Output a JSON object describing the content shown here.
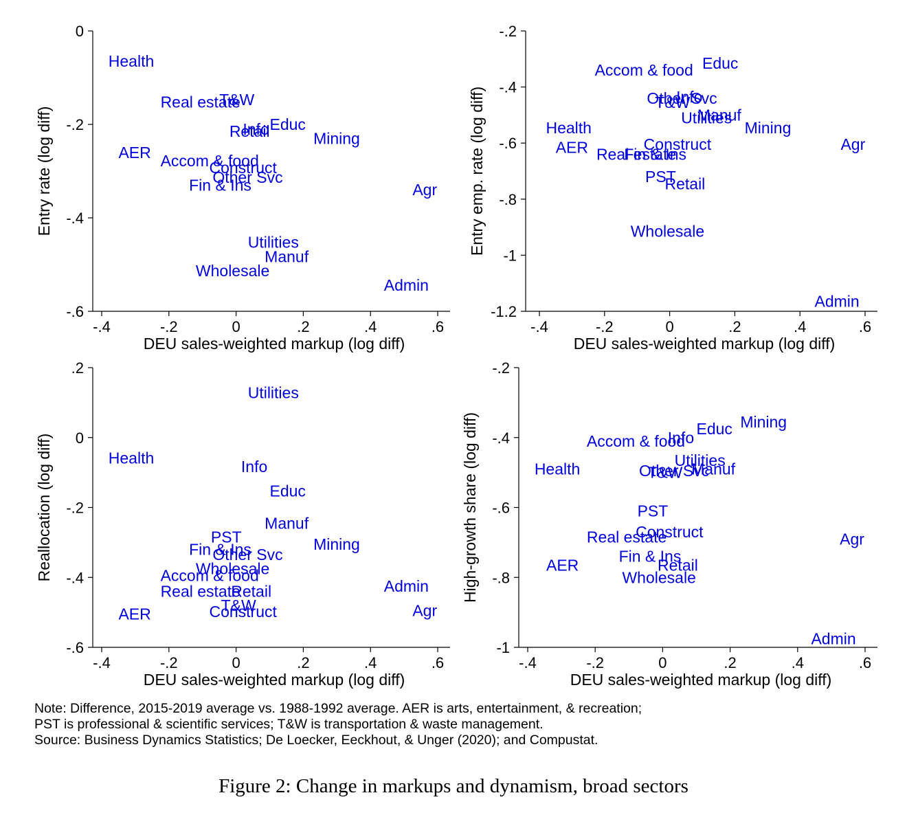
{
  "chart_data": [
    {
      "type": "scatter",
      "xlabel": "DEU sales-weighted markup (log diff)",
      "ylabel": "Entry rate (log diff)",
      "xlim": [
        -0.4,
        0.6
      ],
      "ylim": [
        -0.6,
        0
      ],
      "xticks": [
        -0.4,
        -0.2,
        0,
        0.2,
        0.4,
        0.6
      ],
      "xtick_labels": [
        "-.4",
        "-.2",
        "0",
        ".2",
        ".4",
        ".6"
      ],
      "yticks": [
        0,
        -0.2,
        -0.4,
        -0.6
      ],
      "ytick_labels": [
        "0",
        "-.2",
        "-.4",
        "-.6"
      ],
      "points": [
        {
          "label": "Health",
          "x": -0.38,
          "y": -0.065
        },
        {
          "label": "T&W",
          "x": -0.05,
          "y": -0.147
        },
        {
          "label": "Real estate",
          "x": -0.225,
          "y": -0.152
        },
        {
          "label": "Info",
          "x": 0.02,
          "y": -0.21
        },
        {
          "label": "Educ",
          "x": 0.1,
          "y": -0.2
        },
        {
          "label": "Retail",
          "x": -0.02,
          "y": -0.215
        },
        {
          "label": "Mining",
          "x": 0.23,
          "y": -0.23
        },
        {
          "label": "AER",
          "x": -0.35,
          "y": -0.26
        },
        {
          "label": "Accom & food",
          "x": -0.225,
          "y": -0.278
        },
        {
          "label": "Construct",
          "x": -0.08,
          "y": -0.293
        },
        {
          "label": "Other Svc",
          "x": -0.07,
          "y": -0.313
        },
        {
          "label": "Fin & Ins",
          "x": -0.14,
          "y": -0.33
        },
        {
          "label": "Agr",
          "x": 0.525,
          "y": -0.34
        },
        {
          "label": "Utilities",
          "x": 0.035,
          "y": -0.452
        },
        {
          "label": "Manuf",
          "x": 0.085,
          "y": -0.483
        },
        {
          "label": "Wholesale",
          "x": -0.12,
          "y": -0.513
        },
        {
          "label": "Admin",
          "x": 0.44,
          "y": -0.544
        }
      ]
    },
    {
      "type": "scatter",
      "xlabel": "DEU sales-weighted markup (log diff)",
      "ylabel": "Entry emp. rate (log diff)",
      "xlim": [
        -0.4,
        0.6
      ],
      "ylim": [
        -1.2,
        -0.2
      ],
      "xticks": [
        -0.4,
        -0.2,
        0,
        0.2,
        0.4,
        0.6
      ],
      "xtick_labels": [
        "-.4",
        "-.2",
        "0",
        ".2",
        ".4",
        ".6"
      ],
      "yticks": [
        -0.2,
        -0.4,
        -0.6,
        -0.8,
        -1,
        -1.2
      ],
      "ytick_labels": [
        "-.2",
        "-.4",
        "-.6",
        "-.8",
        "-1",
        "-1.2"
      ],
      "points": [
        {
          "label": "Educ",
          "x": 0.1,
          "y": -0.315
        },
        {
          "label": "Accom & food",
          "x": -0.23,
          "y": -0.34
        },
        {
          "label": "Other Svc",
          "x": -0.07,
          "y": -0.44
        },
        {
          "label": "Info",
          "x": 0.02,
          "y": -0.435
        },
        {
          "label": "T&W",
          "x": -0.045,
          "y": -0.455
        },
        {
          "label": "Manuf",
          "x": 0.085,
          "y": -0.5
        },
        {
          "label": "Utilities",
          "x": 0.035,
          "y": -0.51
        },
        {
          "label": "Mining",
          "x": 0.23,
          "y": -0.545
        },
        {
          "label": "Health",
          "x": -0.38,
          "y": -0.545
        },
        {
          "label": "Construct",
          "x": -0.08,
          "y": -0.605
        },
        {
          "label": "AER",
          "x": -0.35,
          "y": -0.615
        },
        {
          "label": "Real estate",
          "x": -0.225,
          "y": -0.64
        },
        {
          "label": "Fin & Ins",
          "x": -0.14,
          "y": -0.64
        },
        {
          "label": "Agr",
          "x": 0.525,
          "y": -0.605
        },
        {
          "label": "PST",
          "x": -0.075,
          "y": -0.72
        },
        {
          "label": "Retail",
          "x": -0.015,
          "y": -0.745
        },
        {
          "label": "Wholesale",
          "x": -0.12,
          "y": -0.915
        },
        {
          "label": "Admin",
          "x": 0.445,
          "y": -1.165
        }
      ]
    },
    {
      "type": "scatter",
      "xlabel": "DEU sales-weighted markup (log diff)",
      "ylabel": "Reallocation (log diff)",
      "xlim": [
        -0.4,
        0.6
      ],
      "ylim": [
        -0.6,
        0.2
      ],
      "xticks": [
        -0.4,
        -0.2,
        0,
        0.2,
        0.4,
        0.6
      ],
      "xtick_labels": [
        "-.4",
        "-.2",
        "0",
        ".2",
        ".4",
        ".6"
      ],
      "yticks": [
        0.2,
        0,
        -0.2,
        -0.4,
        -0.6
      ],
      "ytick_labels": [
        ".2",
        "0",
        "-.2",
        "-.4",
        "-.6"
      ],
      "points": [
        {
          "label": "Utilities",
          "x": 0.035,
          "y": 0.128
        },
        {
          "label": "Health",
          "x": -0.38,
          "y": -0.058
        },
        {
          "label": "Info",
          "x": 0.015,
          "y": -0.083
        },
        {
          "label": "Educ",
          "x": 0.1,
          "y": -0.153
        },
        {
          "label": "Manuf",
          "x": 0.085,
          "y": -0.245
        },
        {
          "label": "PST",
          "x": -0.075,
          "y": -0.285
        },
        {
          "label": "Mining",
          "x": 0.23,
          "y": -0.305
        },
        {
          "label": "Fin & Ins",
          "x": -0.14,
          "y": -0.32
        },
        {
          "label": "Other Svc",
          "x": -0.07,
          "y": -0.335
        },
        {
          "label": "Wholesale",
          "x": -0.12,
          "y": -0.375
        },
        {
          "label": "Accom & food",
          "x": -0.225,
          "y": -0.395
        },
        {
          "label": "Admin",
          "x": 0.44,
          "y": -0.425
        },
        {
          "label": "Real estate",
          "x": -0.225,
          "y": -0.44
        },
        {
          "label": "Retail",
          "x": -0.015,
          "y": -0.44
        },
        {
          "label": "T&W",
          "x": -0.045,
          "y": -0.48
        },
        {
          "label": "Construct",
          "x": -0.08,
          "y": -0.498
        },
        {
          "label": "Agr",
          "x": 0.525,
          "y": -0.495
        },
        {
          "label": "AER",
          "x": -0.35,
          "y": -0.505
        }
      ]
    },
    {
      "type": "scatter",
      "xlabel": "DEU sales-weighted markup (log diff)",
      "ylabel": "High-growth share (log diff)",
      "xlim": [
        -0.4,
        0.6
      ],
      "ylim": [
        -1,
        -0.2
      ],
      "xticks": [
        -0.4,
        -0.2,
        0,
        0.2,
        0.4,
        0.6
      ],
      "xtick_labels": [
        "-.4",
        "-.2",
        "0",
        ".2",
        ".4",
        ".6"
      ],
      "yticks": [
        -0.2,
        -0.4,
        -0.6,
        -0.8,
        -1
      ],
      "ytick_labels": [
        "-.2",
        "-.4",
        "-.6",
        "-.8",
        "-1"
      ],
      "points": [
        {
          "label": "Mining",
          "x": 0.23,
          "y": -0.355
        },
        {
          "label": "Educ",
          "x": 0.1,
          "y": -0.375
        },
        {
          "label": "Accom & food",
          "x": -0.225,
          "y": -0.41
        },
        {
          "label": "Info",
          "x": 0.015,
          "y": -0.4
        },
        {
          "label": "Utilities",
          "x": 0.035,
          "y": -0.465
        },
        {
          "label": "Health",
          "x": -0.38,
          "y": -0.49
        },
        {
          "label": "Other Svc",
          "x": -0.07,
          "y": -0.495
        },
        {
          "label": "T&W",
          "x": -0.045,
          "y": -0.5
        },
        {
          "label": "Manuf",
          "x": 0.085,
          "y": -0.49
        },
        {
          "label": "PST",
          "x": -0.075,
          "y": -0.61
        },
        {
          "label": "Construct",
          "x": -0.08,
          "y": -0.67
        },
        {
          "label": "Real estate",
          "x": -0.225,
          "y": -0.685
        },
        {
          "label": "Agr",
          "x": 0.525,
          "y": -0.69
        },
        {
          "label": "Fin & Ins",
          "x": -0.13,
          "y": -0.74
        },
        {
          "label": "AER",
          "x": -0.345,
          "y": -0.765
        },
        {
          "label": "Retail",
          "x": -0.015,
          "y": -0.765
        },
        {
          "label": "Wholesale",
          "x": -0.12,
          "y": -0.8
        },
        {
          "label": "Admin",
          "x": 0.44,
          "y": -0.975
        }
      ]
    }
  ],
  "note": {
    "line1": "Note: Difference, 2015-2019 average vs. 1988-1992 average. AER is arts, entertainment, & recreation;",
    "line2": "PST is professional & scientific services; T&W is transportation & waste management.",
    "line3": "Source: Business Dynamics Statistics; De Loecker, Eeckhout, & Unger (2020); and Compustat."
  },
  "caption": "Figure 2: Change in markups and dynamism, broad sectors",
  "colors": {
    "points": "#0000dd",
    "axes": "#000000"
  }
}
